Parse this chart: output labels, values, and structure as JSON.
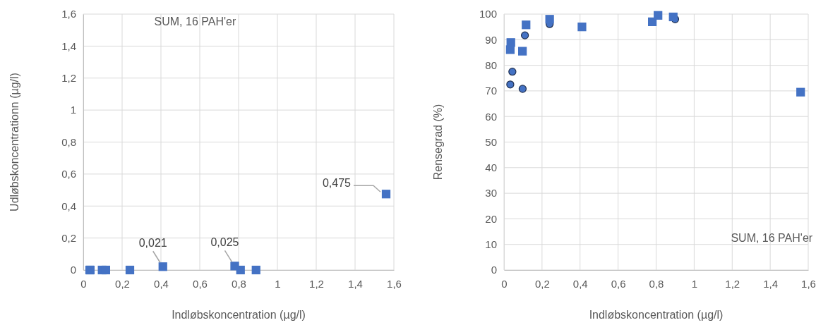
{
  "chart_data": [
    {
      "type": "scatter",
      "title": "SUM, 16 PAH'er",
      "xlabel": "Indløbskoncentration (µg/l)",
      "ylabel": "Udløbskoncentrationn (µg/l)",
      "marker": "square",
      "grid": true,
      "xlim": [
        0,
        1.6
      ],
      "xticks": [
        {
          "value": 0,
          "label": "0"
        },
        {
          "value": 0.2,
          "label": "0,2"
        },
        {
          "value": 0.4,
          "label": "0,4"
        },
        {
          "value": 0.6,
          "label": "0,6"
        },
        {
          "value": 0.8,
          "label": "0,8"
        },
        1,
        {
          "value": 1.2,
          "label": "1,2"
        },
        {
          "value": 1.4,
          "label": "1,4"
        },
        {
          "value": 1.6,
          "label": "1,6"
        }
      ],
      "ylim": [
        0,
        1.6
      ],
      "yticks": [
        {
          "value": 0,
          "label": "0"
        },
        {
          "value": 0.2,
          "label": "0,2"
        },
        {
          "value": 0.4,
          "label": "0,4"
        },
        {
          "value": 0.6,
          "label": "0,6"
        },
        {
          "value": 0.8,
          "label": "0,8"
        },
        1,
        {
          "value": 1.2,
          "label": "1,2"
        },
        {
          "value": 1.4,
          "label": "1,4"
        },
        {
          "value": 1.6,
          "label": "1,6"
        }
      ],
      "series": [
        {
          "color": "#4472c4",
          "x": [
            0.033,
            0.036,
            0.097,
            0.116,
            0.24,
            0.41,
            0.78,
            0.81,
            0.89,
            1.56
          ],
          "values": [
            0,
            0,
            0,
            0,
            0,
            0.021,
            0.025,
            0,
            0,
            0.475
          ],
          "value_labels": [
            null,
            null,
            null,
            null,
            null,
            "0,021",
            "0,025",
            null,
            null,
            "0,475"
          ]
        }
      ]
    },
    {
      "type": "scatter",
      "title": "SUM, 16 PAH'er",
      "xlabel": "Indløbskoncentration (µg/l)",
      "ylabel": "Rensegrad (%)",
      "grid": true,
      "xlim": [
        0,
        1.6
      ],
      "xticks": [
        {
          "value": 0,
          "label": "0"
        },
        {
          "value": 0.2,
          "label": "0,2"
        },
        {
          "value": 0.4,
          "label": "0,4"
        },
        {
          "value": 0.6,
          "label": "0,6"
        },
        {
          "value": 0.8,
          "label": "0,8"
        },
        1,
        {
          "value": 1.2,
          "label": "1,2"
        },
        {
          "value": 1.4,
          "label": "1,4"
        },
        {
          "value": 1.6,
          "label": "1,6"
        }
      ],
      "ylim": [
        0,
        100
      ],
      "yticks": [
        {
          "value": 0,
          "label": "0"
        },
        10,
        20,
        30,
        40,
        50,
        60,
        70,
        80,
        90,
        100
      ],
      "series": [
        {
          "color": "#4472c4",
          "marker": "circle",
          "x": [
            0.044,
            0.033,
            0.098,
            0.11,
            0.24,
            0.9
          ],
          "values": [
            77.5,
            72.5,
            70.8,
            91.7,
            96.1,
            98
          ]
        },
        {
          "color": "#4472c4",
          "marker": "square",
          "x": [
            0.033,
            0.036,
            0.097,
            0.116,
            0.24,
            0.41,
            0.78,
            0.81,
            0.89,
            1.56
          ],
          "values": [
            86.1,
            88.9,
            85.5,
            95.8,
            98,
            95,
            97,
            99.5,
            98.9,
            69.5
          ]
        }
      ]
    }
  ]
}
